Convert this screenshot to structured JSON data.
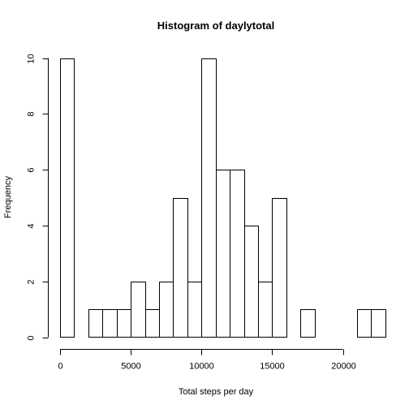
{
  "chart_data": {
    "type": "bar",
    "title": "Histogram of daylytotal",
    "xlabel": "Total steps per day",
    "ylabel": "Frequency",
    "bin_width": 1000,
    "bins": [
      {
        "start": 0,
        "end": 1000,
        "count": 10
      },
      {
        "start": 1000,
        "end": 2000,
        "count": 0
      },
      {
        "start": 2000,
        "end": 3000,
        "count": 1
      },
      {
        "start": 3000,
        "end": 4000,
        "count": 1
      },
      {
        "start": 4000,
        "end": 5000,
        "count": 1
      },
      {
        "start": 5000,
        "end": 6000,
        "count": 2
      },
      {
        "start": 6000,
        "end": 7000,
        "count": 1
      },
      {
        "start": 7000,
        "end": 8000,
        "count": 2
      },
      {
        "start": 8000,
        "end": 9000,
        "count": 5
      },
      {
        "start": 9000,
        "end": 10000,
        "count": 2
      },
      {
        "start": 10000,
        "end": 11000,
        "count": 10
      },
      {
        "start": 11000,
        "end": 12000,
        "count": 6
      },
      {
        "start": 12000,
        "end": 13000,
        "count": 6
      },
      {
        "start": 13000,
        "end": 14000,
        "count": 4
      },
      {
        "start": 14000,
        "end": 15000,
        "count": 2
      },
      {
        "start": 15000,
        "end": 16000,
        "count": 5
      },
      {
        "start": 16000,
        "end": 17000,
        "count": 0
      },
      {
        "start": 17000,
        "end": 18000,
        "count": 1
      },
      {
        "start": 18000,
        "end": 19000,
        "count": 0
      },
      {
        "start": 19000,
        "end": 20000,
        "count": 0
      },
      {
        "start": 20000,
        "end": 21000,
        "count": 0
      },
      {
        "start": 21000,
        "end": 22000,
        "count": 1
      },
      {
        "start": 22000,
        "end": 23000,
        "count": 1
      }
    ],
    "xlim": [
      0,
      23000
    ],
    "ylim": [
      0,
      10
    ],
    "x_ticks": [
      0,
      5000,
      10000,
      15000,
      20000
    ],
    "y_ticks": [
      0,
      2,
      4,
      6,
      8,
      10
    ],
    "grid": false,
    "legend": "none"
  }
}
